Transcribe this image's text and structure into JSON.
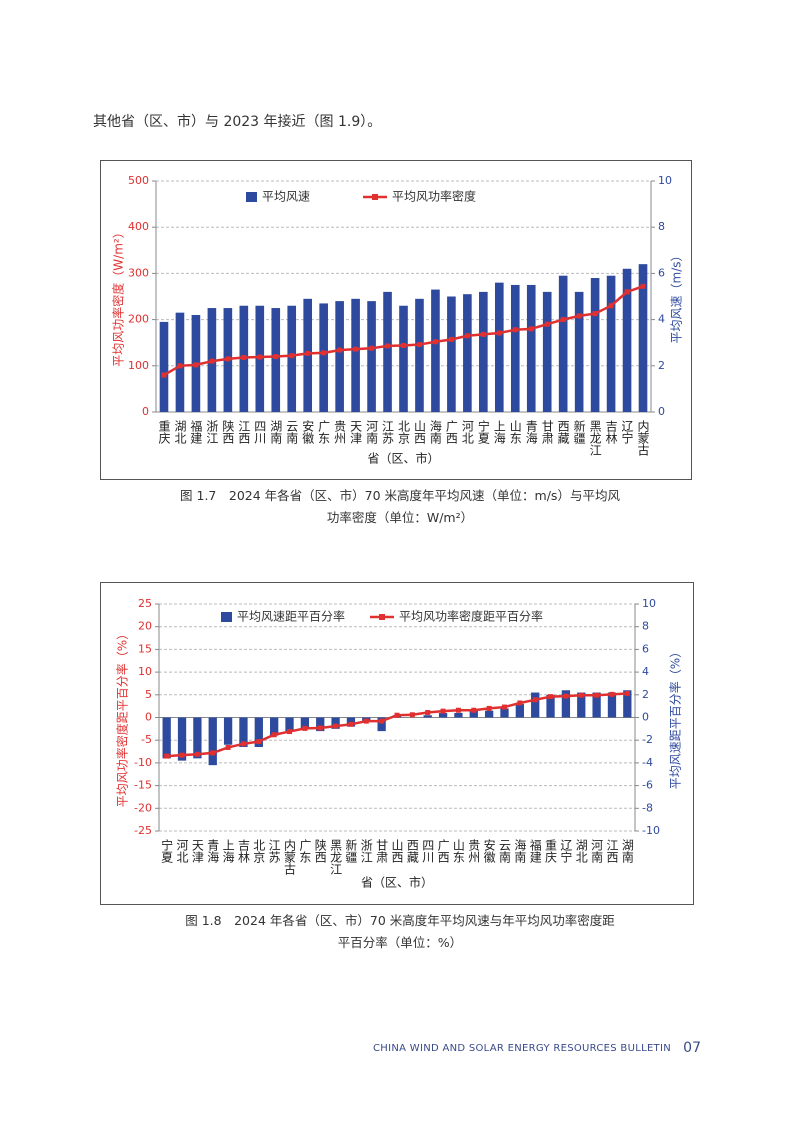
{
  "intro": "其他省（区、市）与 2023 年接近（图 1.9）。",
  "footer": {
    "text": "CHINA WIND AND SOLAR ENERGY RESOURCES BULLETIN",
    "page": "07"
  },
  "chart_data": [
    {
      "type": "combo",
      "caption": "图 1.7　2024 年各省（区、市）70 米高度年平均风速（单位：m/s）与平均风功率密度（单位：W/m²）",
      "xlabel": "省（区、市）",
      "ylabel": "平均风功率密度（W/m²）",
      "y2label": "平均风速（m/s）",
      "categories": [
        "重庆",
        "湖北",
        "福建",
        "浙江",
        "陕西",
        "江西",
        "四川",
        "湖南",
        "云南",
        "安徽",
        "广东",
        "贵州",
        "天津",
        "河南",
        "江苏",
        "北京",
        "山西",
        "海南",
        "广西",
        "河北",
        "宁夏",
        "上海",
        "山东",
        "青海",
        "甘肃",
        "西藏",
        "新疆",
        "黑龙江",
        "吉林",
        "辽宁",
        "内蒙古"
      ],
      "series": [
        {
          "name": "平均风速",
          "type": "bar",
          "axis": "y2",
          "color": "#2e4a9e",
          "values": [
            3.9,
            4.3,
            4.2,
            4.5,
            4.5,
            4.6,
            4.6,
            4.5,
            4.6,
            4.9,
            4.7,
            4.8,
            4.9,
            4.8,
            5.2,
            4.6,
            4.9,
            5.3,
            5.0,
            5.1,
            5.2,
            5.6,
            5.5,
            5.5,
            5.2,
            5.9,
            5.2,
            5.8,
            5.9,
            6.2,
            6.4
          ]
        },
        {
          "name": "平均风功率密度",
          "type": "line",
          "color": "#e03030",
          "values": [
            80,
            100,
            102,
            110,
            115,
            118,
            119,
            120,
            122,
            127,
            128,
            134,
            136,
            138,
            143,
            144,
            146,
            152,
            157,
            165,
            168,
            171,
            178,
            180,
            190,
            200,
            208,
            213,
            230,
            260,
            272
          ]
        }
      ],
      "ylim": [
        0,
        500
      ],
      "yticks": [
        0,
        100,
        200,
        300,
        400,
        500
      ],
      "y2lim": [
        0,
        10
      ],
      "y2ticks": [
        0,
        2,
        4,
        6,
        8,
        10
      ],
      "grid": true,
      "legend": "top"
    },
    {
      "type": "combo",
      "caption": "图 1.8　2024 年各省（区、市）70 米高度年平均风速与年平均风功率密度距平百分率（单位：%）",
      "xlabel": "省（区、市）",
      "ylabel": "平均风功率密度距平百分率（%）",
      "y2label": "平均风速距平百分率（%）",
      "categories": [
        "宁夏",
        "河北",
        "天津",
        "青海",
        "上海",
        "吉林",
        "北京",
        "江苏",
        "内蒙古",
        "广东",
        "陕西",
        "黑龙江",
        "新疆",
        "浙江",
        "甘肃",
        "山西",
        "西藏",
        "四川",
        "广西",
        "山东",
        "贵州",
        "安徽",
        "云南",
        "海南",
        "福建",
        "重庆",
        "辽宁",
        "湖北",
        "河南",
        "江西",
        "湖南"
      ],
      "series": [
        {
          "name": "平均风速距平百分率",
          "type": "bar",
          "axis": "y2",
          "color": "#2e4a9e",
          "values": [
            -3.6,
            -3.8,
            -3.6,
            -4.2,
            -2.4,
            -2.6,
            -2.6,
            -1.6,
            -1.2,
            -1.0,
            -1.2,
            -1.0,
            -0.8,
            -0.4,
            -1.2,
            0.2,
            0.0,
            0.2,
            0.4,
            0.4,
            0.6,
            0.6,
            0.8,
            1.2,
            2.2,
            2.0,
            2.4,
            2.2,
            2.2,
            2.2,
            2.4
          ]
        },
        {
          "name": "平均风功率密度距平百分率",
          "type": "line",
          "color": "#e03030",
          "values": [
            -8.5,
            -8.3,
            -8.1,
            -7.8,
            -6.6,
            -5.8,
            -5.3,
            -3.8,
            -3.1,
            -2.4,
            -2.3,
            -1.9,
            -1.5,
            -0.8,
            -0.8,
            0.5,
            0.6,
            1.1,
            1.4,
            1.6,
            1.6,
            2.0,
            2.3,
            3.2,
            3.9,
            4.6,
            4.7,
            4.9,
            4.9,
            5.1,
            5.3
          ]
        }
      ],
      "ylim": [
        -25,
        25
      ],
      "yticks": [
        -25,
        -20,
        -15,
        -10,
        -5,
        0,
        5,
        10,
        15,
        20,
        25
      ],
      "y2lim": [
        -10,
        10
      ],
      "y2ticks": [
        -10,
        -8,
        -6,
        -4,
        -2,
        0,
        2,
        4,
        6,
        8,
        10
      ],
      "grid": true,
      "legend": "top"
    }
  ]
}
